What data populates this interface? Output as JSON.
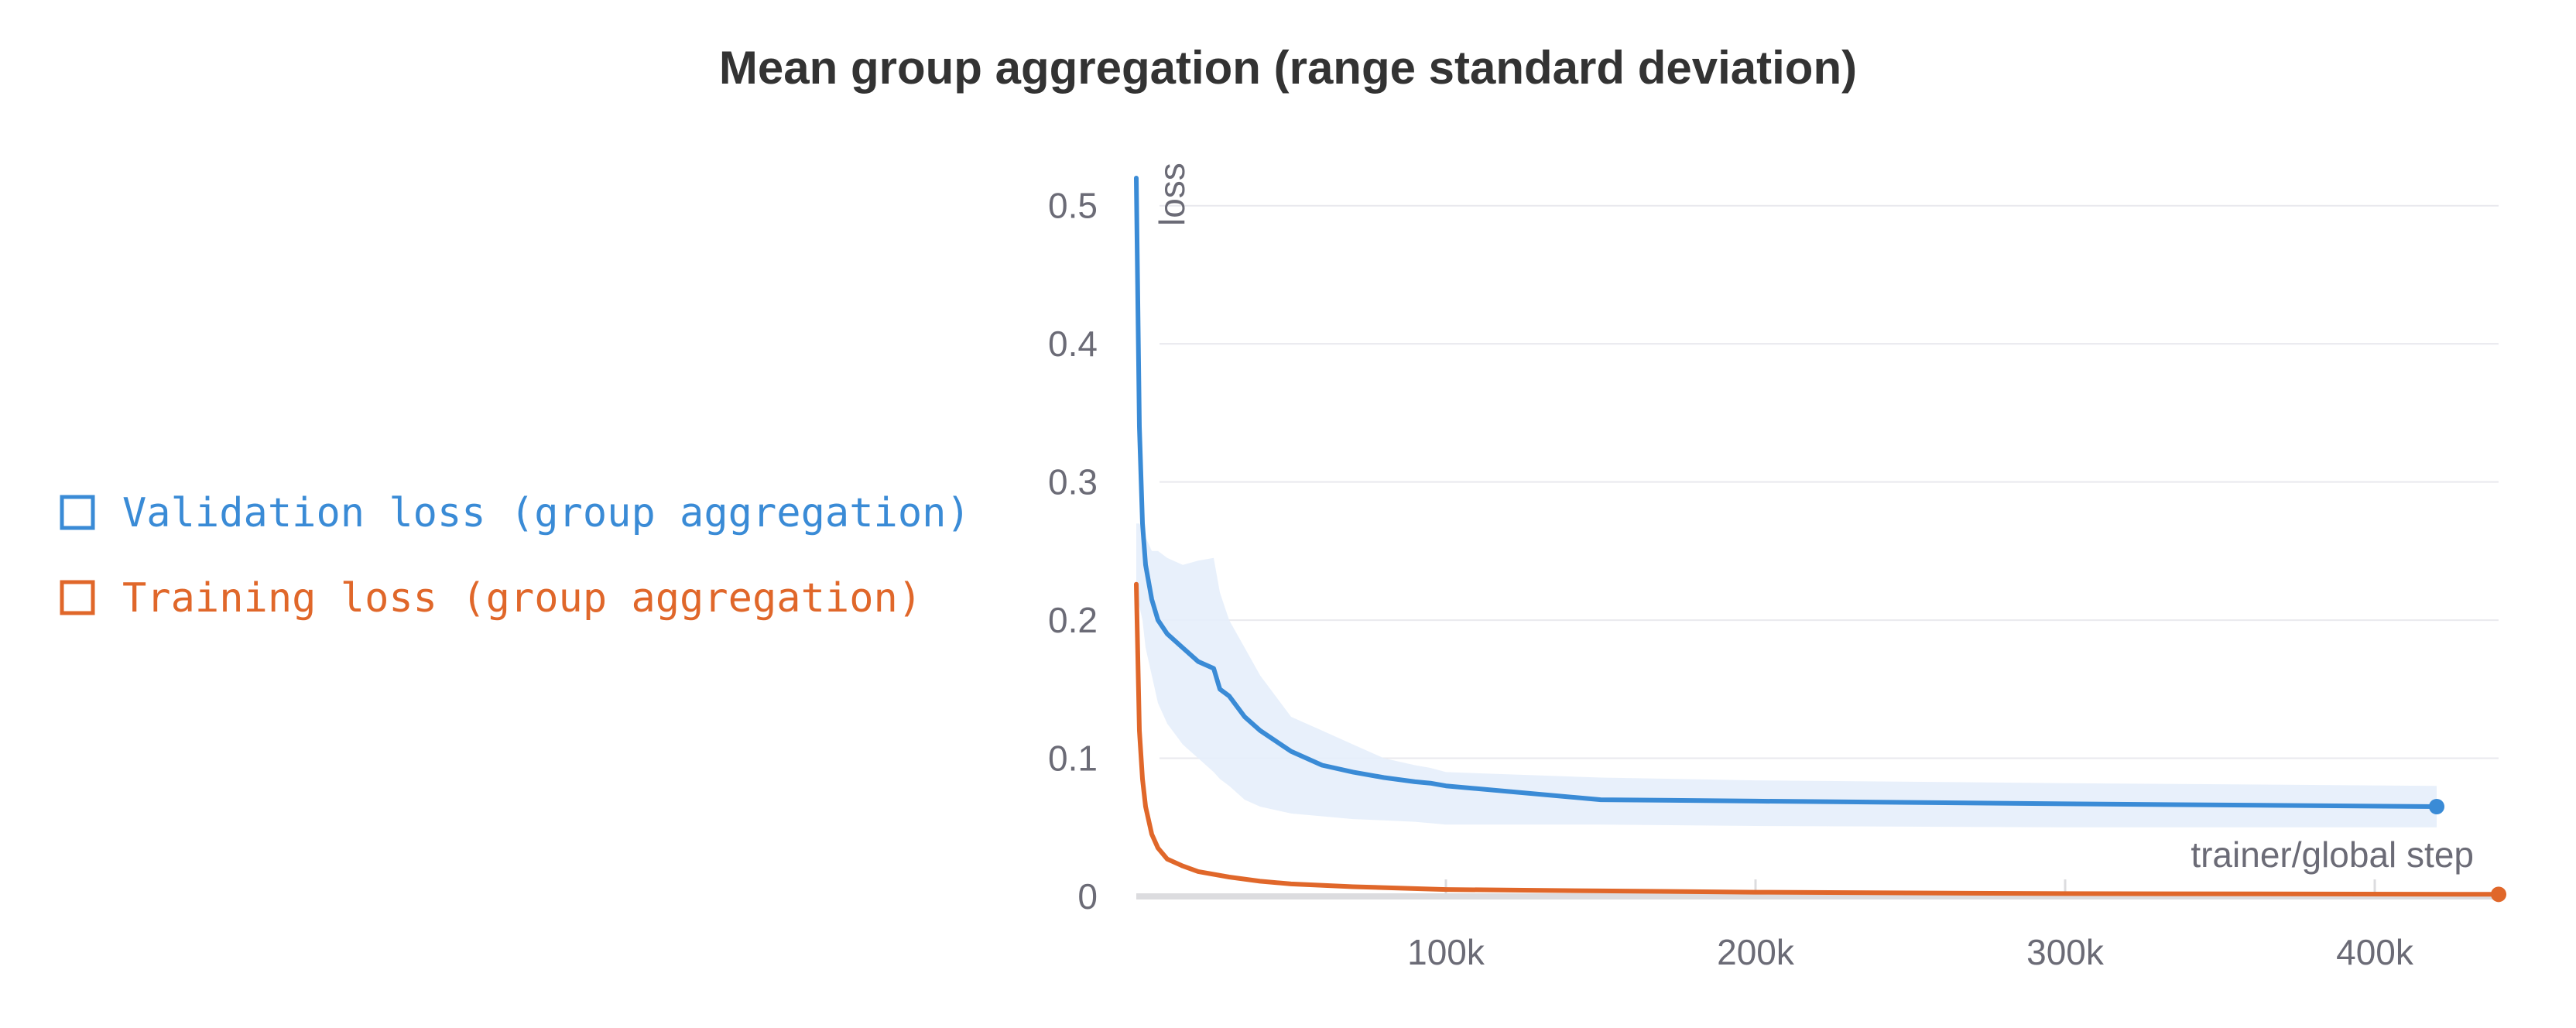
{
  "chart_data": {
    "type": "line",
    "title": "Mean group aggregation (range standard deviation)",
    "xlabel": "trainer/global step",
    "ylabel": "loss",
    "xlim": [
      0,
      440000
    ],
    "ylim": [
      0,
      0.52
    ],
    "x_ticks": [
      100000,
      200000,
      300000,
      400000
    ],
    "x_tick_labels": [
      "100k",
      "200k",
      "300k",
      "400k"
    ],
    "y_ticks": [
      0,
      0.1,
      0.2,
      0.3,
      0.4,
      0.5
    ],
    "y_tick_labels": [
      "0",
      "0.1",
      "0.2",
      "0.3",
      "0.4",
      "0.5"
    ],
    "grid": true,
    "legend_placement": "left",
    "series": [
      {
        "name": "Validation loss (group aggregation)",
        "color": "#3a8bd6",
        "band_color": "#e6eefb",
        "x": [
          0,
          1000,
          2000,
          3000,
          5000,
          7000,
          10000,
          15000,
          20000,
          25000,
          27000,
          30000,
          35000,
          40000,
          50000,
          60000,
          70000,
          80000,
          90000,
          95000,
          100000,
          150000,
          200000,
          300000,
          420000
        ],
        "y": [
          0.52,
          0.34,
          0.27,
          0.24,
          0.215,
          0.2,
          0.19,
          0.18,
          0.17,
          0.165,
          0.15,
          0.145,
          0.13,
          0.12,
          0.105,
          0.095,
          0.09,
          0.086,
          0.083,
          0.082,
          0.08,
          0.07,
          0.069,
          0.067,
          0.065
        ],
        "band_upper": [
          0.27,
          0.27,
          0.265,
          0.26,
          0.25,
          0.25,
          0.245,
          0.24,
          0.243,
          0.245,
          0.22,
          0.2,
          0.18,
          0.16,
          0.13,
          0.12,
          0.11,
          0.1,
          0.095,
          0.093,
          0.09,
          0.086,
          0.084,
          0.082,
          0.08
        ],
        "band_lower": [
          0.22,
          0.21,
          0.2,
          0.18,
          0.16,
          0.14,
          0.125,
          0.11,
          0.1,
          0.09,
          0.085,
          0.08,
          0.07,
          0.065,
          0.06,
          0.058,
          0.056,
          0.055,
          0.054,
          0.053,
          0.052,
          0.052,
          0.051,
          0.05,
          0.05
        ]
      },
      {
        "name": "Training loss (group aggregation)",
        "color": "#e0672a",
        "x": [
          0,
          1000,
          2000,
          3000,
          5000,
          7000,
          10000,
          15000,
          20000,
          30000,
          40000,
          50000,
          70000,
          100000,
          150000,
          200000,
          300000,
          440000
        ],
        "y": [
          0.226,
          0.12,
          0.085,
          0.065,
          0.045,
          0.035,
          0.027,
          0.022,
          0.018,
          0.014,
          0.011,
          0.009,
          0.007,
          0.005,
          0.004,
          0.003,
          0.002,
          0.0015
        ]
      }
    ]
  }
}
